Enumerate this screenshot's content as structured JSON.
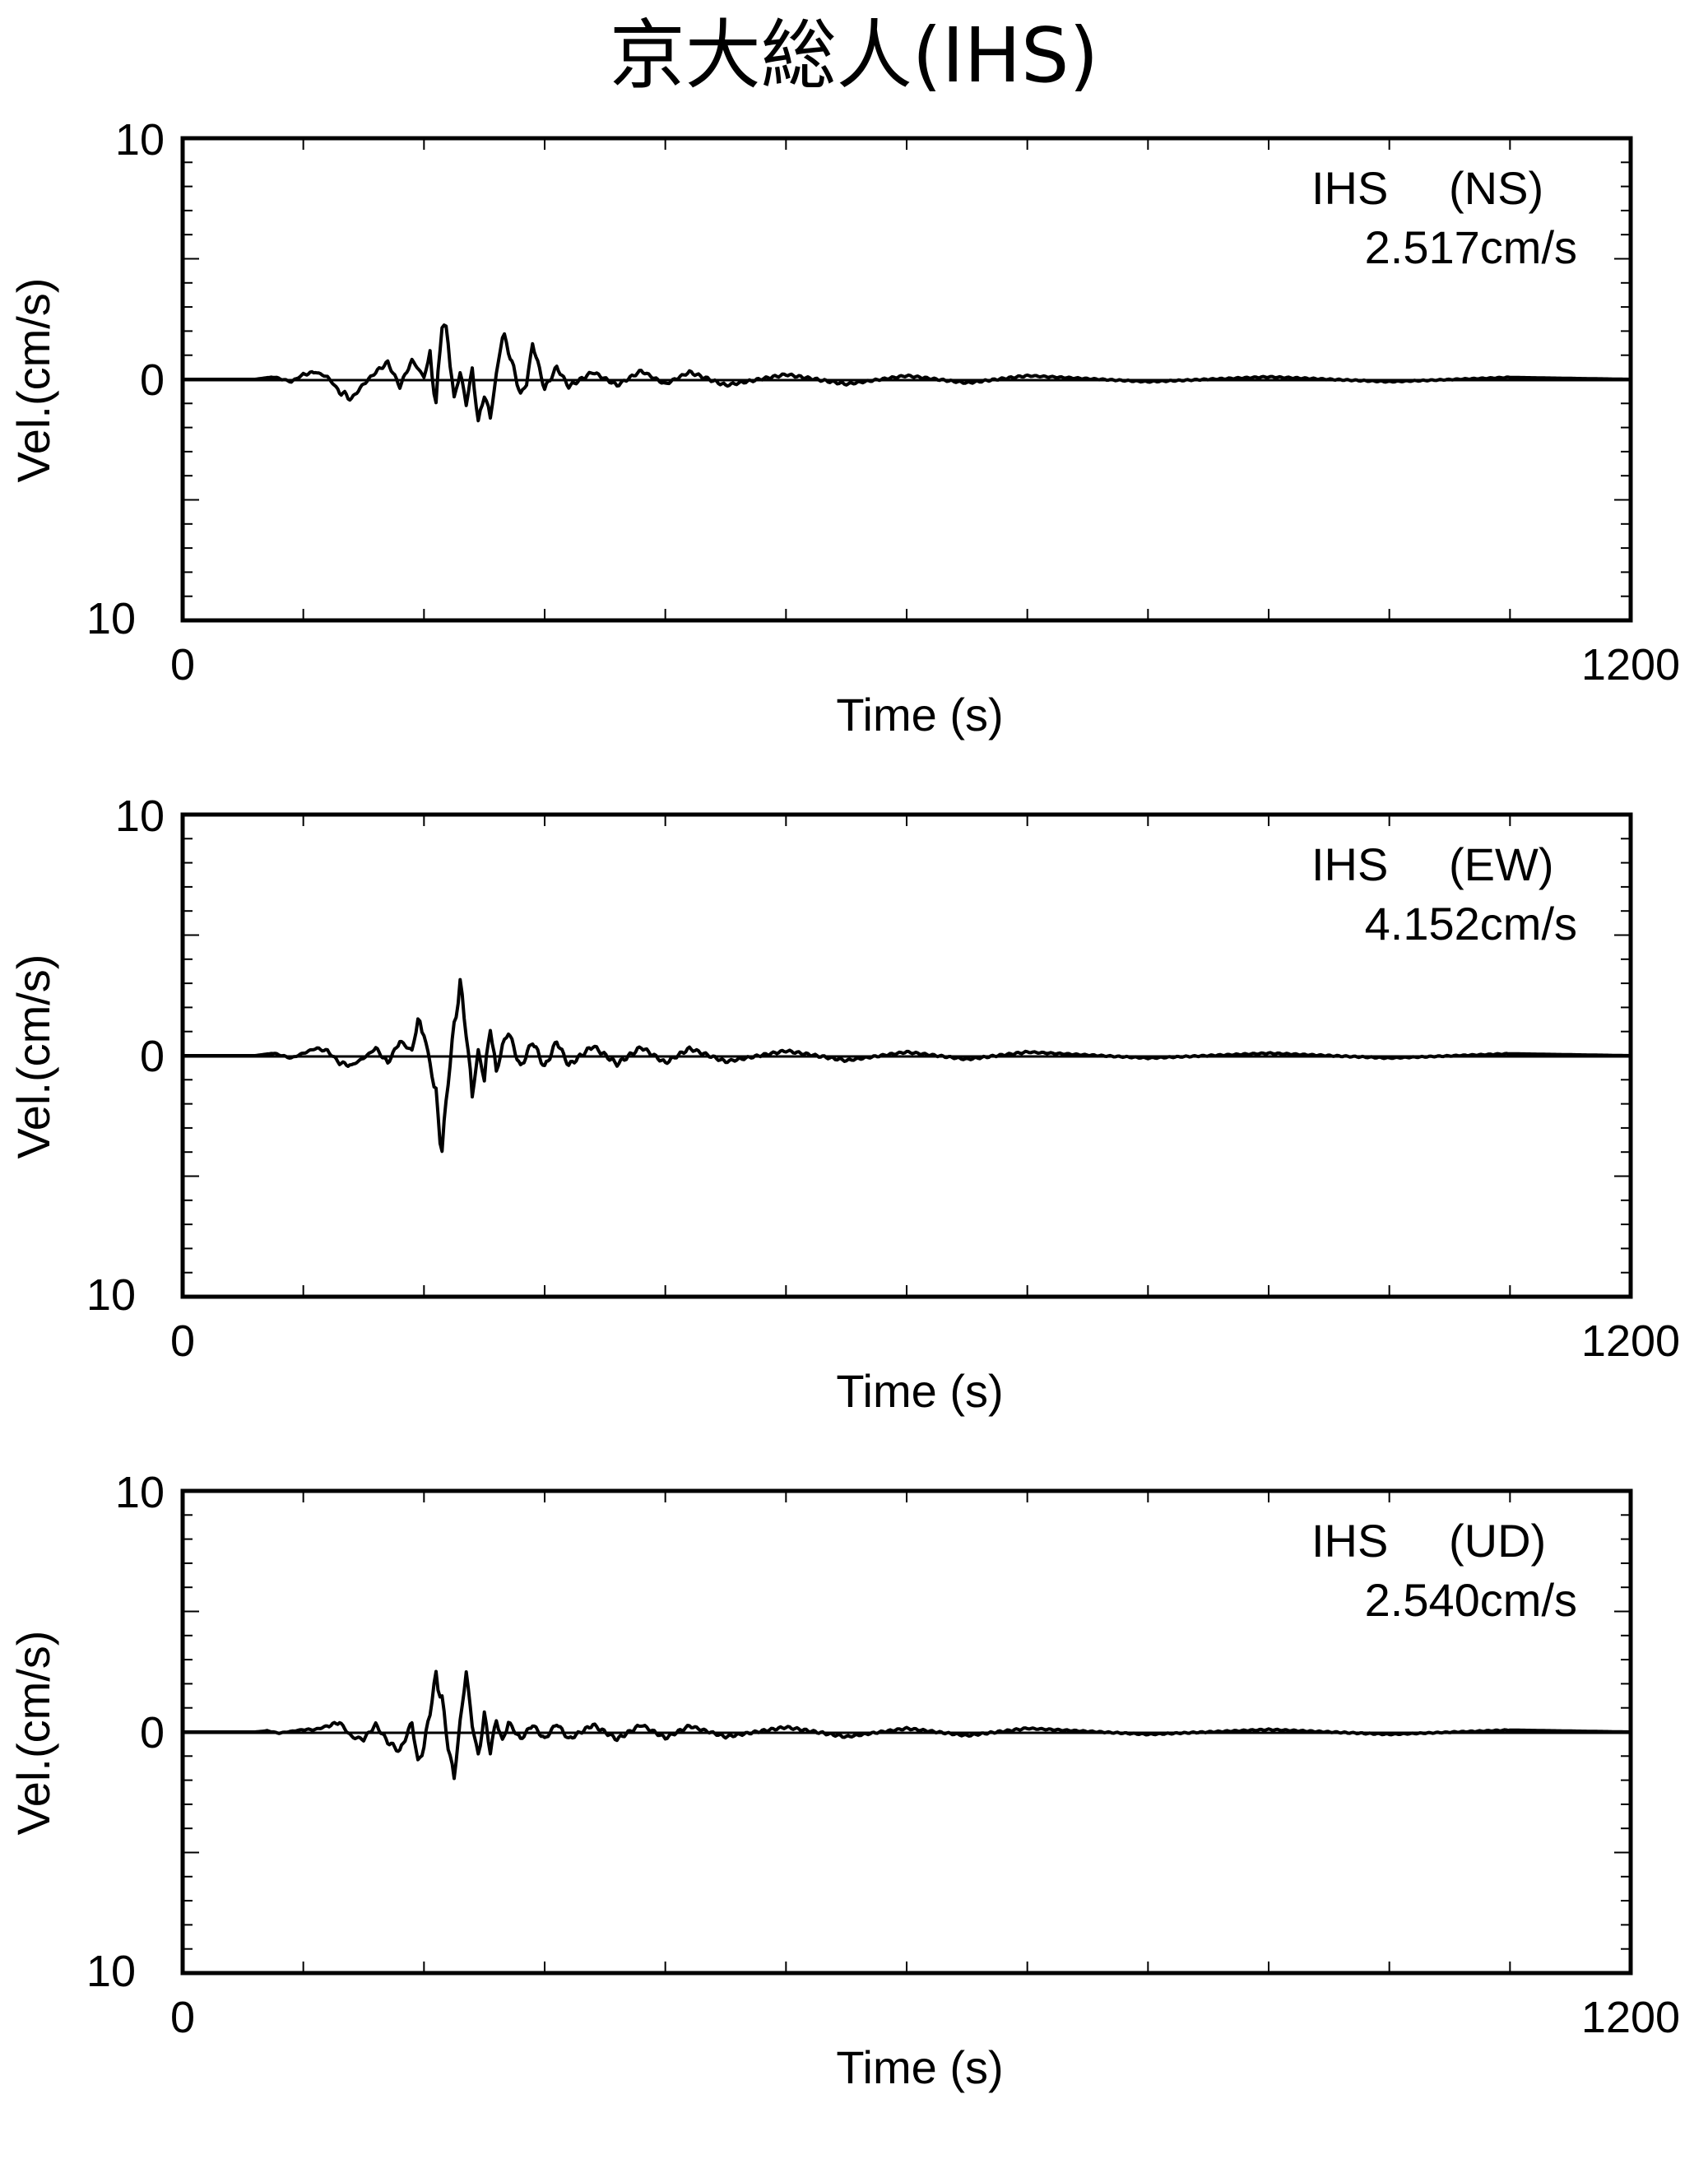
{
  "title": "京大総人(IHS)",
  "chart_data": [
    {
      "type": "line",
      "station": "IHS",
      "component": "(NS)",
      "peak_label": "2.517cm/s",
      "peak": 2.517,
      "xlabel": "Time (s)",
      "ylabel": "Vel.(cm/s)",
      "xlim": [
        0,
        1200
      ],
      "ylim": [
        -10,
        10
      ],
      "x_tick_labels": [
        "0",
        "1200"
      ],
      "y_tick_labels": {
        "top": "10",
        "mid": "0",
        "bottom": "10"
      },
      "series": [
        {
          "x": [
            0,
            60,
            75,
            90,
            100,
            110,
            120,
            130,
            140,
            150,
            160,
            170,
            180,
            190,
            200,
            205,
            210,
            215,
            220,
            225,
            230,
            235,
            240,
            245,
            250,
            255,
            260,
            265,
            270,
            280,
            285,
            290,
            300,
            310,
            320,
            340,
            360,
            380,
            400,
            420,
            450,
            500,
            550,
            600,
            650,
            700,
            800,
            900,
            1000,
            1100,
            1200
          ],
          "y": [
            0,
            0,
            0.1,
            -0.1,
            0.2,
            0.3,
            0.1,
            -0.5,
            -0.8,
            -0.2,
            0.3,
            0.7,
            -0.3,
            0.8,
            0.1,
            1.0,
            -1.1,
            2.5,
            1.5,
            -0.8,
            0.3,
            -1.0,
            0.4,
            -1.8,
            -0.6,
            -1.6,
            0.2,
            1.8,
            1.2,
            -0.6,
            -0.2,
            1.5,
            -0.4,
            0.5,
            -0.3,
            0.3,
            -0.25,
            0.35,
            -0.2,
            0.3,
            -0.25,
            0.2,
            -0.2,
            0.15,
            -0.15,
            0.15,
            -0.1,
            0.1,
            -0.1,
            0.08,
            0
          ]
        }
      ]
    },
    {
      "type": "line",
      "station": "IHS",
      "component": "(EW)",
      "peak_label": "4.152cm/s",
      "peak": 4.152,
      "xlabel": "Time (s)",
      "ylabel": "Vel.(cm/s)",
      "xlim": [
        0,
        1200
      ],
      "ylim": [
        -10,
        10
      ],
      "x_tick_labels": [
        "0",
        "1200"
      ],
      "y_tick_labels": {
        "top": "10",
        "mid": "0",
        "bottom": "10"
      },
      "series": [
        {
          "x": [
            0,
            60,
            75,
            90,
            100,
            110,
            120,
            130,
            140,
            150,
            160,
            170,
            180,
            190,
            195,
            200,
            205,
            210,
            215,
            220,
            225,
            230,
            235,
            240,
            245,
            250,
            255,
            260,
            265,
            270,
            280,
            290,
            300,
            310,
            320,
            340,
            360,
            380,
            400,
            420,
            450,
            500,
            550,
            600,
            650,
            700,
            800,
            900,
            1000,
            1100,
            1200
          ],
          "y": [
            0,
            0,
            0.1,
            -0.1,
            0.1,
            0.3,
            0.2,
            -0.3,
            -0.4,
            -0.1,
            0.3,
            -0.3,
            0.6,
            0.2,
            1.4,
            0.9,
            -0.3,
            -1.8,
            -3.9,
            -1.0,
            1.2,
            3.0,
            1.0,
            -1.7,
            0.2,
            -1.0,
            1.2,
            -0.7,
            0.4,
            1.0,
            -0.5,
            0.6,
            -0.5,
            0.6,
            -0.4,
            0.4,
            -0.35,
            0.35,
            -0.3,
            0.3,
            -0.25,
            0.2,
            -0.2,
            0.15,
            -0.15,
            0.15,
            -0.1,
            0.1,
            -0.1,
            0.08,
            0
          ]
        }
      ]
    },
    {
      "type": "line",
      "station": "IHS",
      "component": "(UD)",
      "peak_label": "2.540cm/s",
      "peak": 2.54,
      "xlabel": "Time (s)",
      "ylabel": "Vel.(cm/s)",
      "xlim": [
        0,
        1200
      ],
      "ylim": [
        -10,
        10
      ],
      "x_tick_labels": [
        "0",
        "1200"
      ],
      "y_tick_labels": {
        "top": "10",
        "mid": "0",
        "bottom": "10"
      },
      "series": [
        {
          "x": [
            0,
            60,
            70,
            80,
            100,
            110,
            120,
            130,
            140,
            150,
            160,
            170,
            180,
            190,
            195,
            200,
            205,
            210,
            215,
            220,
            225,
            230,
            235,
            240,
            245,
            250,
            255,
            260,
            265,
            270,
            280,
            290,
            300,
            310,
            320,
            340,
            360,
            380,
            400,
            420,
            450,
            500,
            550,
            600,
            650,
            700,
            800,
            900,
            1000,
            1100,
            1200
          ],
          "y": [
            0,
            0,
            0.05,
            -0.05,
            0.1,
            0.1,
            0.25,
            0.4,
            -0.2,
            -0.3,
            0.3,
            -0.4,
            -0.8,
            0.4,
            -1.3,
            -0.6,
            0.9,
            2.3,
            1.4,
            -0.6,
            -1.9,
            0.4,
            2.5,
            0.3,
            -1.0,
            0.7,
            -0.8,
            0.5,
            -0.4,
            0.4,
            -0.3,
            0.3,
            -0.3,
            0.35,
            -0.3,
            0.3,
            -0.3,
            0.3,
            -0.25,
            0.25,
            -0.2,
            0.2,
            -0.2,
            0.15,
            -0.15,
            0.15,
            -0.1,
            0.1,
            -0.1,
            0.08,
            0
          ]
        }
      ]
    }
  ]
}
